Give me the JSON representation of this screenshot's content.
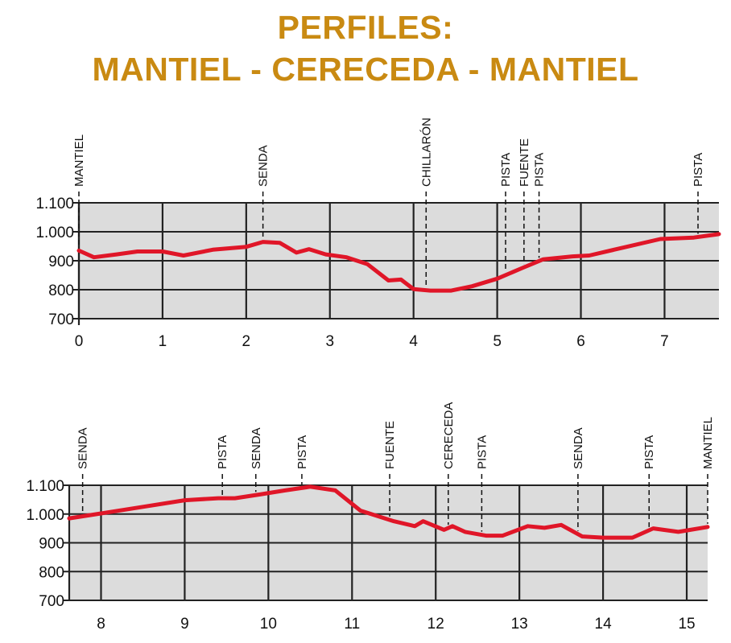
{
  "title": {
    "line1": "PERFILES:",
    "line2": "MANTIEL - CERECEDA - MANTIEL"
  },
  "colors": {
    "title": "#c98a12",
    "line": "#e01628",
    "plot_bg": "#dcdcdc",
    "grid": "#222222"
  },
  "chart_data": [
    {
      "type": "line",
      "xlim": [
        0,
        7.65
      ],
      "ylim": [
        700,
        1100
      ],
      "x_ticks": [
        0,
        1,
        2,
        3,
        4,
        5,
        6,
        7
      ],
      "x_tick_labels": [
        "0",
        "1",
        "2",
        "3",
        "4",
        "5",
        "6",
        "7"
      ],
      "y_ticks": [
        700,
        800,
        900,
        1000,
        1100
      ],
      "y_tick_labels": [
        "700",
        "800",
        "900",
        "1.000",
        "1.100"
      ],
      "grid": true,
      "x": [
        0,
        0.18,
        0.45,
        0.7,
        1.0,
        1.25,
        1.6,
        2.0,
        2.2,
        2.4,
        2.6,
        2.75,
        2.95,
        3.2,
        3.45,
        3.7,
        3.85,
        4.0,
        4.2,
        4.45,
        4.7,
        5.0,
        5.3,
        5.55,
        5.9,
        6.1,
        6.5,
        6.95,
        7.35,
        7.65
      ],
      "y": [
        935,
        912,
        922,
        932,
        932,
        918,
        938,
        948,
        965,
        962,
        928,
        940,
        922,
        912,
        888,
        832,
        835,
        802,
        797,
        797,
        812,
        838,
        875,
        905,
        915,
        918,
        945,
        975,
        980,
        992
      ],
      "waypoints": [
        {
          "label": "MANTIEL",
          "x": 0
        },
        {
          "label": "SENDA",
          "x": 2.2
        },
        {
          "label": "CHILLARÓN",
          "x": 4.15
        },
        {
          "label": "PISTA",
          "x": 5.1
        },
        {
          "label": "FUENTE",
          "x": 5.32
        },
        {
          "label": "PISTA",
          "x": 5.5
        },
        {
          "label": "PISTA",
          "x": 7.4
        }
      ]
    },
    {
      "type": "line",
      "xlim": [
        7.62,
        15.25
      ],
      "ylim": [
        700,
        1100
      ],
      "x_ticks": [
        8,
        9,
        10,
        11,
        12,
        13,
        14,
        15
      ],
      "x_tick_labels": [
        "8",
        "9",
        "10",
        "11",
        "12",
        "13",
        "14",
        "15"
      ],
      "y_ticks": [
        700,
        800,
        900,
        1000,
        1100
      ],
      "y_tick_labels": [
        "700",
        "800",
        "900",
        "1.000",
        "1.100"
      ],
      "grid": true,
      "x": [
        7.62,
        8.0,
        8.5,
        9.0,
        9.4,
        9.6,
        9.9,
        10.2,
        10.5,
        10.8,
        11.1,
        11.5,
        11.75,
        11.85,
        12.1,
        12.2,
        12.35,
        12.6,
        12.8,
        13.1,
        13.3,
        13.5,
        13.75,
        14.0,
        14.35,
        14.6,
        14.9,
        15.25
      ],
      "y": [
        985,
        1002,
        1025,
        1048,
        1055,
        1055,
        1068,
        1082,
        1095,
        1082,
        1012,
        975,
        958,
        975,
        945,
        958,
        938,
        925,
        925,
        958,
        952,
        962,
        922,
        918,
        918,
        950,
        938,
        955
      ],
      "waypoints": [
        {
          "label": "SENDA",
          "x": 7.78
        },
        {
          "label": "PISTA",
          "x": 9.45
        },
        {
          "label": "SENDA",
          "x": 9.85
        },
        {
          "label": "PISTA",
          "x": 10.4
        },
        {
          "label": "FUENTE",
          "x": 11.45
        },
        {
          "label": "CERECEDA",
          "x": 12.15
        },
        {
          "label": "PISTA",
          "x": 12.55
        },
        {
          "label": "SENDA",
          "x": 13.7
        },
        {
          "label": "PISTA",
          "x": 14.55
        },
        {
          "label": "MANTIEL",
          "x": 15.25
        }
      ]
    }
  ]
}
